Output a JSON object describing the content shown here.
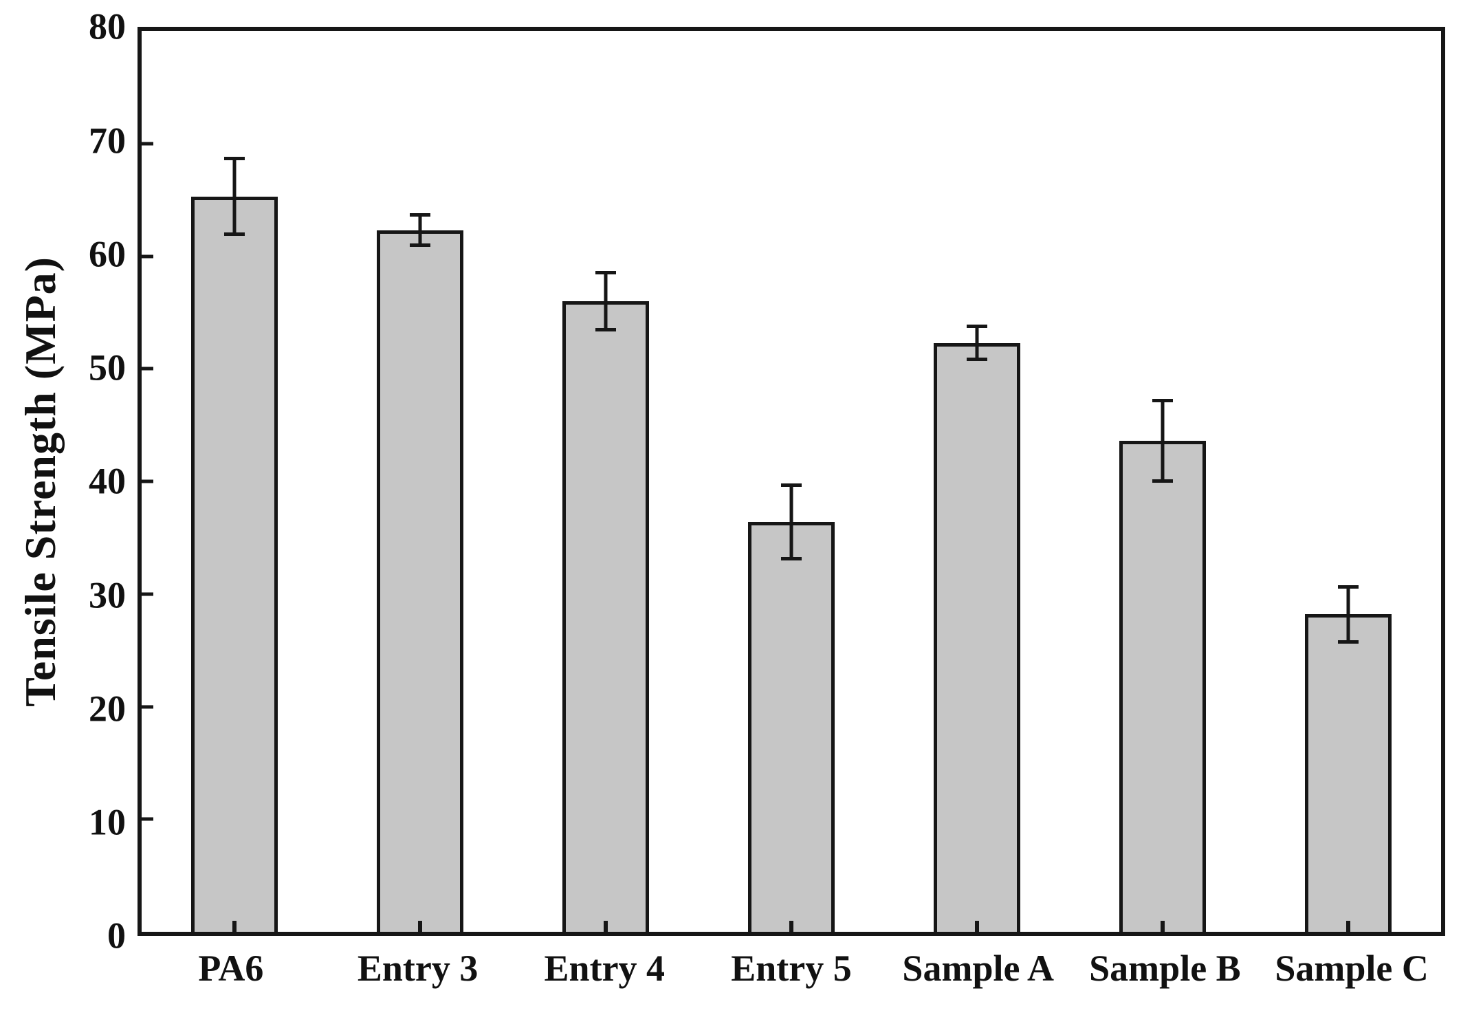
{
  "figure": {
    "background": "#ffffff",
    "text_color": "#111111"
  },
  "chart_data": {
    "type": "bar",
    "title": "",
    "xlabel": "",
    "ylabel": "Tensile Strength (MPa)",
    "ylim": [
      0,
      80
    ],
    "yticks": [
      0,
      10,
      20,
      30,
      40,
      50,
      60,
      70,
      80
    ],
    "grid": false,
    "legend": "none",
    "frame": "full-box",
    "tick_direction": "in",
    "bar_fill": "#c6c6c6",
    "bar_edge": "#161616",
    "error_color": "#161616",
    "categories": [
      "PA6",
      "Entry 3",
      "Entry 4",
      "Entry 5",
      "Sample A",
      "Sample B",
      "Sample C"
    ],
    "series": [
      {
        "name": "Tensile Strength (MPa)",
        "values": [
          65.3,
          62.3,
          56.0,
          36.4,
          52.3,
          43.6,
          28.2
        ],
        "errors": [
          3.5,
          1.5,
          2.7,
          3.4,
          1.6,
          3.7,
          2.6
        ]
      }
    ]
  }
}
